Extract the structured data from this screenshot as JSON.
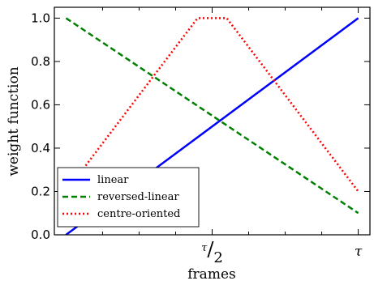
{
  "chart_data": {
    "type": "line",
    "title": "",
    "xlabel": "frames",
    "ylabel": "weight function",
    "xlim": [
      -0.04,
      1.04
    ],
    "ylim": [
      0.0,
      1.05
    ],
    "x_ticks": [
      {
        "value": 0.5,
        "label": "τ/2"
      },
      {
        "value": 1.0,
        "label": "τ"
      }
    ],
    "x_minor_ticks": [
      0.125,
      0.25,
      0.375,
      0.625,
      0.75,
      0.875
    ],
    "y_ticks": [
      0.0,
      0.2,
      0.4,
      0.6,
      0.8,
      1.0
    ],
    "y_tick_labels": [
      "0.0",
      "0.2",
      "0.4",
      "0.6",
      "0.8",
      "1.0"
    ],
    "grid": false,
    "legend_position": "lower-left",
    "series": [
      {
        "name": "linear",
        "color": "#0000ff",
        "style": "solid",
        "x": [
          0,
          1
        ],
        "y": [
          0,
          1
        ]
      },
      {
        "name": "reversed-linear",
        "color": "#008000",
        "style": "dashed",
        "x": [
          0,
          1
        ],
        "y": [
          1,
          0.1
        ]
      },
      {
        "name": "centre-oriented",
        "color": "#ff0000",
        "style": "dotted",
        "x": [
          0,
          0.45,
          0.55,
          1
        ],
        "y": [
          0.2,
          1.0,
          1.0,
          0.2
        ]
      }
    ]
  }
}
